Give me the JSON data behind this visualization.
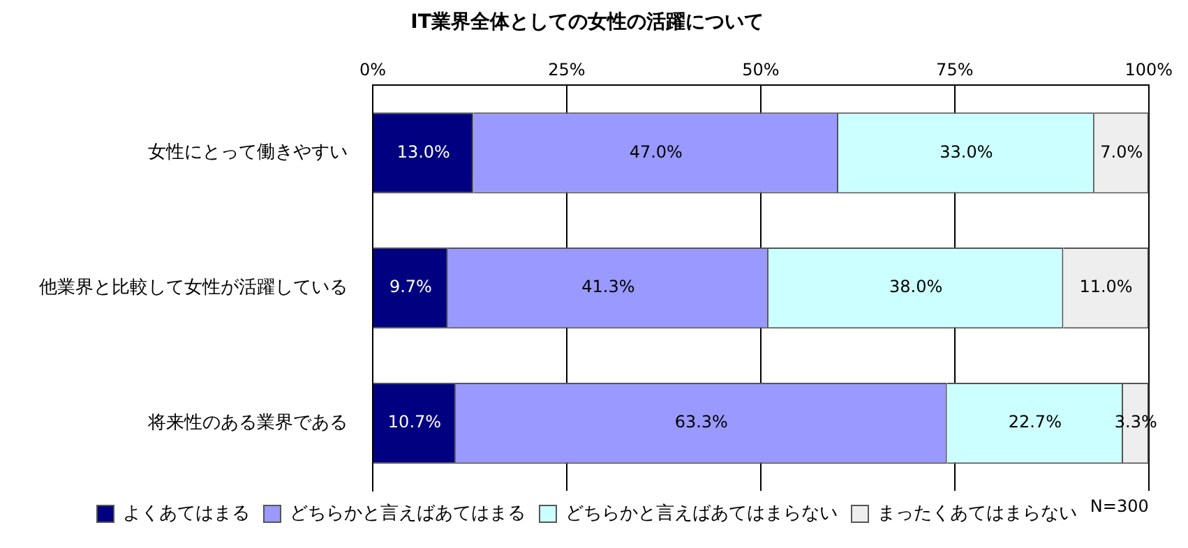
{
  "chart_data": {
    "type": "bar",
    "orientation": "horizontal",
    "stacked": true,
    "title": "IT業界全体としての女性の活躍について",
    "categories": [
      "女性にとって働きやすい",
      "他業界と比較して女性が活躍している",
      "将来性のある業界である"
    ],
    "series": [
      {
        "name": "よくあてはまる",
        "color": "#000080",
        "values": [
          13.0,
          9.7,
          10.7
        ],
        "value_labels": [
          "13.0%",
          "9.7%",
          "10.7%"
        ]
      },
      {
        "name": "どちらかと言えばあてはまる",
        "color": "#9999ff",
        "values": [
          47.0,
          41.3,
          63.3
        ],
        "value_labels": [
          "47.0%",
          "41.3%",
          "63.3%"
        ]
      },
      {
        "name": "どちらかと言えばあてはまらない",
        "color": "#ccffff",
        "values": [
          33.0,
          38.0,
          22.7
        ],
        "value_labels": [
          "33.0%",
          "38.0%",
          "22.7%"
        ]
      },
      {
        "name": "まったくあてはまらない",
        "color": "#eeeeee",
        "values": [
          7.0,
          11.0,
          3.3
        ],
        "value_labels": [
          "7.0%",
          "11.0%",
          "3.3%"
        ]
      }
    ],
    "xlim": [
      0,
      100
    ],
    "xticks": [
      {
        "value": 0,
        "label": "0%"
      },
      {
        "value": 25,
        "label": "25%"
      },
      {
        "value": 50,
        "label": "50%"
      },
      {
        "value": 75,
        "label": "75%"
      },
      {
        "value": 100,
        "label": "100%"
      }
    ],
    "grid": "x",
    "legend": "bottom",
    "annotations": [
      "N=300"
    ]
  }
}
